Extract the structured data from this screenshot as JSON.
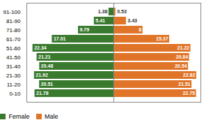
{
  "chart_data": {
    "type": "bar",
    "orientation": "horizontal",
    "categories": [
      "0-10",
      "11-20",
      "21-30",
      "31-40",
      "41-50",
      "51-60",
      "61-70",
      "71-80",
      "81-90",
      "91-100"
    ],
    "series": [
      {
        "name": "Female",
        "color": "#3a7a2e",
        "values": [
          21.78,
          20.51,
          21.92,
          20.48,
          21.21,
          22.34,
          17.01,
          9.79,
          5.41,
          1.38
        ]
      },
      {
        "name": "Male",
        "color": "#e07428",
        "values": [
          22.75,
          21.51,
          22.82,
          20.54,
          20.84,
          21.22,
          15.37,
          8.0,
          3.43,
          0.53
        ]
      }
    ],
    "xlim": [
      0,
      24
    ],
    "data_labels": true,
    "tick_labels": "y",
    "legend": "bottom"
  }
}
